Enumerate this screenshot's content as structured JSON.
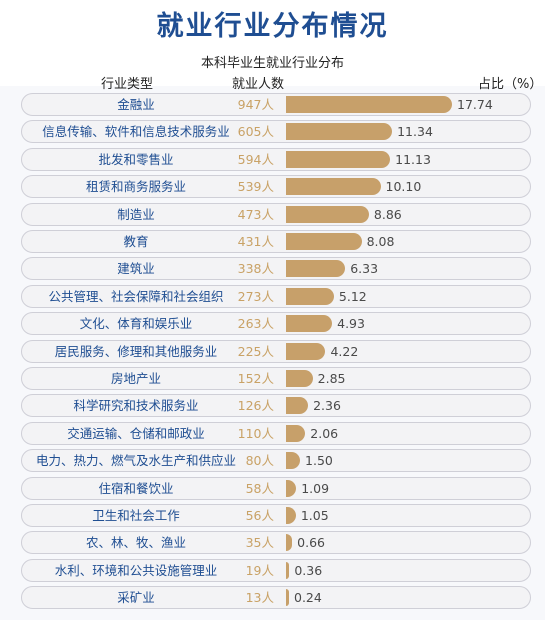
{
  "title": "就业行业分布情况",
  "chart_data": {
    "type": "bar",
    "title": "本科毕业生就业行业分布",
    "headers": {
      "category": "行业类型",
      "count": "就业人数",
      "percent": "占比（%）"
    },
    "count_unit": "人",
    "categories": [
      "金融业",
      "信息传输、软件和信息技术服务业",
      "批发和零售业",
      "租赁和商务服务业",
      "制造业",
      "教育",
      "建筑业",
      "公共管理、社会保障和社会组织",
      "文化、体育和娱乐业",
      "居民服务、修理和其他服务业",
      "房地产业",
      "科学研究和技术服务业",
      "交通运输、仓储和邮政业",
      "电力、热力、燃气及水生产和供应业",
      "住宿和餐饮业",
      "卫生和社会工作",
      "农、林、牧、渔业",
      "水利、环境和公共设施管理业",
      "采矿业"
    ],
    "counts": [
      947,
      605,
      594,
      539,
      473,
      431,
      338,
      273,
      263,
      225,
      152,
      126,
      110,
      80,
      58,
      56,
      35,
      19,
      13
    ],
    "percentages": [
      "17.74",
      "11.34",
      "11.13",
      "10.10",
      "8.86",
      "8.08",
      "6.33",
      "5.12",
      "4.93",
      "4.22",
      "2.85",
      "2.36",
      "2.06",
      "1.50",
      "1.09",
      "1.05",
      "0.66",
      "0.36",
      "0.24"
    ],
    "colors": {
      "bar": "#c7a06a",
      "category_text": "#1f4e92",
      "count_text": "#c9a266",
      "title": "#1f4e92"
    }
  }
}
